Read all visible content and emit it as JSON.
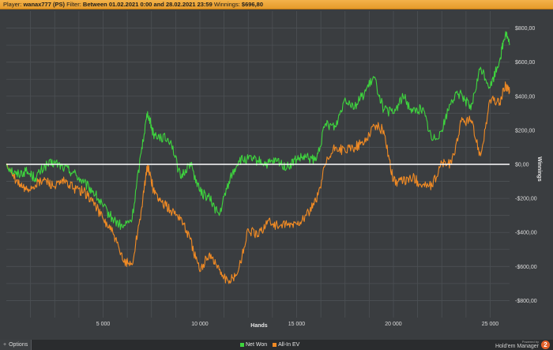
{
  "header": {
    "player_label": "Player:",
    "player_value": "wanax777 (PS)",
    "filter_label": "Filter:",
    "filter_value": "Between 01.02.2021 0:00 and 28.02.2021 23:59",
    "winnings_label": "Winnings:",
    "winnings_value": "$696,80"
  },
  "footer": {
    "options_label": "Options",
    "powered_by": "Powered by",
    "brand_name": "Hold'em Manager",
    "brand_logo_text": "2"
  },
  "colors": {
    "net_won": "#3ed43e",
    "all_in_ev": "#f08a24",
    "zero_line": "#ffffff",
    "grid": "#4c5054",
    "plot_bg": "#3a3d40"
  },
  "chart_data": {
    "type": "line",
    "xlabel": "Hands",
    "ylabel": "Winnings",
    "xlim": [
      0,
      26000
    ],
    "ylim": [
      -900,
      900
    ],
    "x_ticks": [
      5000,
      10000,
      15000,
      20000,
      25000
    ],
    "x_tick_labels": [
      "5 000",
      "10 000",
      "15 000",
      "20 000",
      "25 000"
    ],
    "y_ticks": [
      800,
      600,
      400,
      200,
      0,
      -200,
      -400,
      -600,
      -800
    ],
    "y_tick_labels": [
      "$800,00",
      "$600,00",
      "$400,00",
      "$200,00",
      "$0,00",
      "-$200,00",
      "-$400,00",
      "-$600,00",
      "-$800,00"
    ],
    "grid": true,
    "legend_position": "bottom",
    "series": [
      {
        "name": "Net Won",
        "color": "#3ed43e",
        "x": [
          0,
          500,
          1000,
          1500,
          2000,
          2500,
          3000,
          3500,
          4000,
          4500,
          5000,
          5500,
          6000,
          6500,
          7000,
          7300,
          7600,
          8000,
          8500,
          9000,
          9500,
          10000,
          10500,
          11000,
          11500,
          12000,
          12500,
          13000,
          13500,
          14000,
          14500,
          15000,
          15500,
          16000,
          16500,
          17000,
          17500,
          18000,
          18500,
          19000,
          19500,
          20000,
          20500,
          21000,
          21500,
          22000,
          22500,
          23000,
          23500,
          24000,
          24500,
          25000,
          25500,
          25800,
          26000
        ],
        "y": [
          0,
          -60,
          -40,
          -80,
          -10,
          10,
          -20,
          -50,
          -110,
          -160,
          -250,
          -320,
          -370,
          -320,
          100,
          310,
          180,
          160,
          140,
          -80,
          10,
          -160,
          -200,
          -300,
          -100,
          20,
          30,
          20,
          0,
          20,
          -20,
          30,
          40,
          20,
          240,
          220,
          390,
          340,
          420,
          510,
          320,
          300,
          400,
          310,
          330,
          140,
          200,
          380,
          420,
          320,
          570,
          450,
          620,
          780,
          700
        ]
      },
      {
        "name": "All-In EV",
        "color": "#f08a24",
        "x": [
          0,
          500,
          1000,
          1500,
          2000,
          2500,
          3000,
          3500,
          4000,
          4500,
          5000,
          5500,
          6000,
          6500,
          7000,
          7300,
          7600,
          8000,
          8500,
          9000,
          9500,
          10000,
          10500,
          11000,
          11500,
          12000,
          12500,
          13000,
          13500,
          14000,
          14500,
          15000,
          15500,
          16000,
          16500,
          17000,
          17500,
          18000,
          18500,
          19000,
          19500,
          20000,
          20500,
          21000,
          21500,
          22000,
          22500,
          23000,
          23500,
          24000,
          24500,
          25000,
          25500,
          25800,
          26000
        ],
        "y": [
          0,
          -100,
          -150,
          -120,
          -90,
          -130,
          -100,
          -140,
          -160,
          -220,
          -320,
          -400,
          -560,
          -590,
          -250,
          0,
          -150,
          -220,
          -270,
          -310,
          -440,
          -630,
          -520,
          -620,
          -700,
          -620,
          -380,
          -420,
          -330,
          -360,
          -360,
          -350,
          -300,
          -220,
          0,
          100,
          80,
          100,
          130,
          230,
          200,
          -100,
          -100,
          -80,
          -120,
          -130,
          10,
          0,
          250,
          260,
          50,
          380,
          360,
          470,
          420
        ]
      }
    ]
  }
}
